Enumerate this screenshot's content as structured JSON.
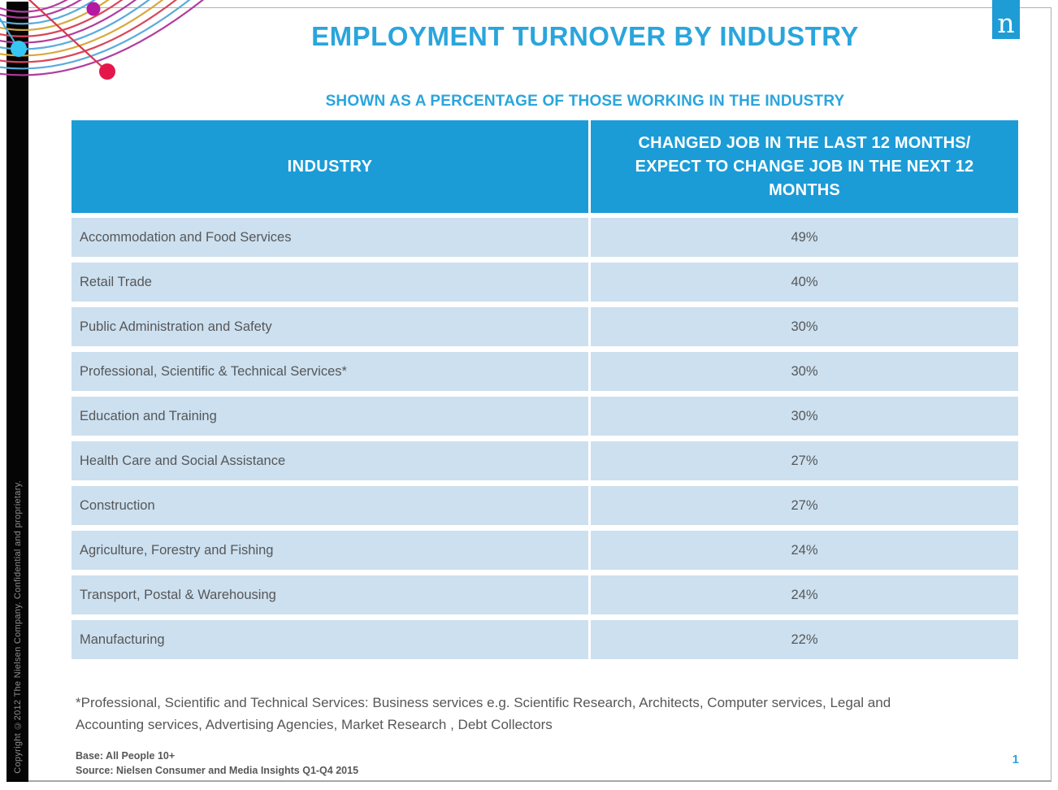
{
  "slide": {
    "title": "EMPLOYMENT TURNOVER BY INDUSTRY",
    "subtitle": "SHOWN AS A PERCENTAGE OF THOSE WORKING IN THE INDUSTRY",
    "logo_letter": "n",
    "sidebar_copyright": "Copyright ©2012 The Nielsen Company. Confidential and proprietary.",
    "footnote": "*Professional, Scientific and Technical Services: Business  services e.g. Scientific Research, Architects, Computer services, Legal and Accounting services, Advertising Agencies, Market Research , Debt Collectors",
    "base_line": "Base: All People 10+",
    "source_line": "Source: Nielsen Consumer and Media Insights Q1-Q4 2015",
    "page_number": "1"
  },
  "table": {
    "columns": [
      "INDUSTRY",
      "CHANGED JOB IN THE LAST 12 MONTHS/ EXPECT TO CHANGE JOB IN THE NEXT 12 MONTHS"
    ],
    "rows": [
      {
        "industry": "Accommodation and Food Services",
        "value": "49%"
      },
      {
        "industry": "Retail Trade",
        "value": "40%"
      },
      {
        "industry": "Public Administration and Safety",
        "value": "30%"
      },
      {
        "industry": "Professional, Scientific & Technical Services*",
        "value": "30%"
      },
      {
        "industry": "Education and Training",
        "value": "30%"
      },
      {
        "industry": "Health Care and Social Assistance",
        "value": "27%"
      },
      {
        "industry": "Construction",
        "value": "27%"
      },
      {
        "industry": "Agriculture, Forestry and Fishing",
        "value": "24%"
      },
      {
        "industry": "Transport, Postal & Warehousing",
        "value": "24%"
      },
      {
        "industry": "Manufacturing",
        "value": "22%"
      }
    ]
  },
  "chart_data": {
    "type": "table",
    "title": "EMPLOYMENT TURNOVER BY INDUSTRY",
    "subtitle": "SHOWN AS A PERCENTAGE OF THOSE WORKING IN THE INDUSTRY",
    "value_column": "CHANGED JOB IN THE LAST 12 MONTHS/ EXPECT TO CHANGE JOB IN THE NEXT 12 MONTHS",
    "categories": [
      "Accommodation and Food Services",
      "Retail Trade",
      "Public Administration and Safety",
      "Professional, Scientific & Technical Services*",
      "Education and Training",
      "Health Care and Social Assistance",
      "Construction",
      "Agriculture, Forestry and Fishing",
      "Transport, Postal & Warehousing",
      "Manufacturing"
    ],
    "values": [
      49,
      40,
      30,
      30,
      30,
      27,
      27,
      24,
      24,
      22
    ],
    "unit": "%"
  },
  "colors": {
    "brand_blue": "#2aa5dc",
    "header_blue": "#1c9cd7",
    "row_blue": "#cce0f0",
    "text_gray": "#575757",
    "decoration": {
      "curve_colors": [
        "#b13c9e",
        "#b13c9e",
        "#5aabdc",
        "#d7a93c",
        "#d8475a",
        "#b13c9e",
        "#5aabdc",
        "#d7a93c",
        "#d8475a",
        "#5aabdc",
        "#b13c9e"
      ],
      "dot_magenta": "#b517a2",
      "dot_cyan": "#35c6f4",
      "dot_red": "#e5174a",
      "line_red": "#d8364e",
      "line_blue": "#4aa8dc"
    }
  }
}
